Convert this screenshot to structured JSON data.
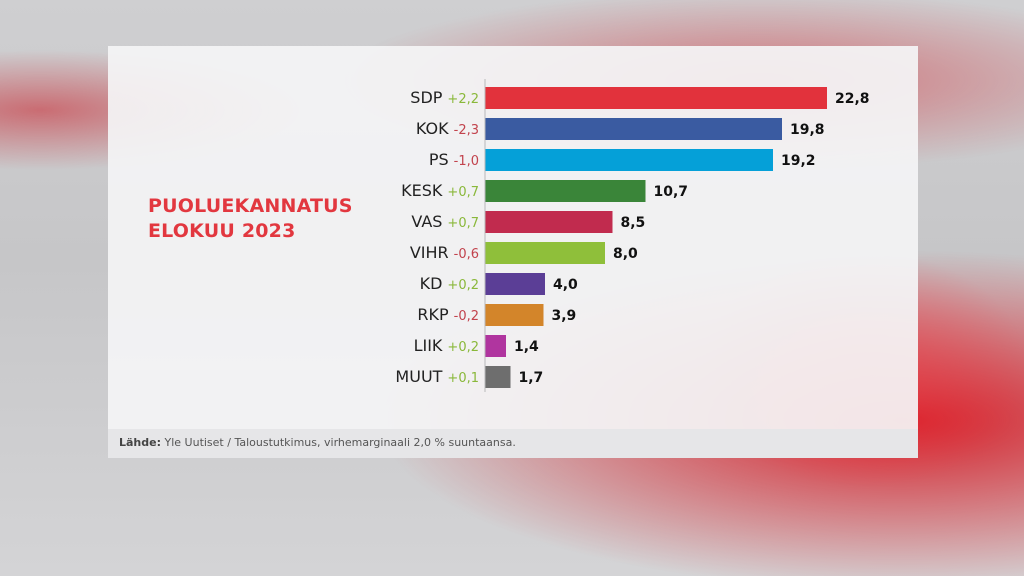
{
  "chart_data": {
    "type": "bar",
    "orientation": "horizontal",
    "title": "PUOLUEKANNATUS",
    "subtitle": "ELOKUU 2023",
    "categories": [
      "SDP",
      "KOK",
      "PS",
      "KESK",
      "VAS",
      "VIHR",
      "KD",
      "RKP",
      "LIIK",
      "MUUT"
    ],
    "values": [
      22.8,
      19.8,
      19.2,
      10.7,
      8.5,
      8.0,
      4.0,
      3.9,
      1.4,
      1.7
    ],
    "value_labels": [
      "22,8",
      "19,8",
      "19,2",
      "10,7",
      "8,5",
      "8,0",
      "4,0",
      "3,9",
      "1,4",
      "1,7"
    ],
    "changes": [
      "+2,2",
      "-2,3",
      "-1,0",
      "+0,7",
      "+0,7",
      "-0,6",
      "+0,2",
      "-0,2",
      "+0,2",
      "+0,1"
    ],
    "bar_colors": [
      "#e2323c",
      "#3a5ba1",
      "#05a0d8",
      "#3a8539",
      "#c12b4e",
      "#8fbf3a",
      "#5b3e96",
      "#d3852a",
      "#b0359f",
      "#6e6e6e"
    ],
    "positive_change_color": "#8ab83a",
    "negative_change_color": "#c2434d",
    "xlim": [
      0,
      22.8
    ],
    "grid": false,
    "legend": "none"
  },
  "footer": {
    "source_label": "Lähde:",
    "source_text": "Yle Uutiset / Taloustutkimus, virhemarginaali 2,0 % suuntaansa."
  }
}
